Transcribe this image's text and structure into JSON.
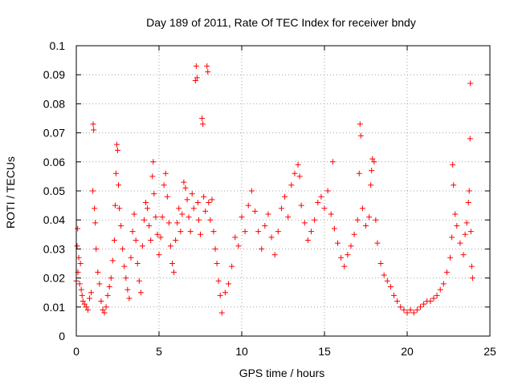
{
  "chart_data": {
    "type": "scatter",
    "title": "Day 189 of 2011, Rate Of TEC Index for receiver bndy",
    "xlabel": "GPS time / hours",
    "ylabel": "ROTI / TECUs",
    "xlim": [
      0,
      25
    ],
    "ylim": [
      0,
      0.1
    ],
    "xticks": [
      0,
      5,
      10,
      15,
      20,
      25
    ],
    "xtick_labels": [
      "0",
      "5",
      "10",
      "15",
      "20",
      "25"
    ],
    "yticks": [
      0,
      0.01,
      0.02,
      0.03,
      0.04,
      0.05,
      0.06,
      0.07,
      0.08,
      0.09,
      0.1
    ],
    "ytick_labels": [
      "0",
      "0.01",
      "0.02",
      "0.03",
      "0.04",
      "0.05",
      "0.06",
      "0.07",
      "0.08",
      "0.09",
      "0.1"
    ],
    "grid": true,
    "marker": "plus",
    "color": "#ff0000",
    "series": [
      {
        "points": [
          [
            0.0,
            0.019
          ],
          [
            0.05,
            0.031
          ],
          [
            0.08,
            0.037
          ],
          [
            0.1,
            0.022
          ],
          [
            0.15,
            0.027
          ],
          [
            0.2,
            0.018
          ],
          [
            0.25,
            0.025
          ],
          [
            0.3,
            0.016
          ],
          [
            0.35,
            0.014
          ],
          [
            0.4,
            0.012
          ],
          [
            0.5,
            0.011
          ],
          [
            0.6,
            0.01
          ],
          [
            0.7,
            0.009
          ],
          [
            0.8,
            0.013
          ],
          [
            0.9,
            0.015
          ],
          [
            1.0,
            0.05
          ],
          [
            1.02,
            0.073
          ],
          [
            1.05,
            0.071
          ],
          [
            1.1,
            0.044
          ],
          [
            1.15,
            0.039
          ],
          [
            1.2,
            0.03
          ],
          [
            1.3,
            0.022
          ],
          [
            1.4,
            0.018
          ],
          [
            1.5,
            0.012
          ],
          [
            1.6,
            0.009
          ],
          [
            1.7,
            0.008
          ],
          [
            1.8,
            0.01
          ],
          [
            1.9,
            0.014
          ],
          [
            2.0,
            0.017
          ],
          [
            2.1,
            0.02
          ],
          [
            2.2,
            0.026
          ],
          [
            2.3,
            0.033
          ],
          [
            2.35,
            0.045
          ],
          [
            2.4,
            0.056
          ],
          [
            2.45,
            0.066
          ],
          [
            2.5,
            0.064
          ],
          [
            2.55,
            0.052
          ],
          [
            2.6,
            0.044
          ],
          [
            2.7,
            0.038
          ],
          [
            2.8,
            0.03
          ],
          [
            2.9,
            0.024
          ],
          [
            3.0,
            0.02
          ],
          [
            3.1,
            0.016
          ],
          [
            3.2,
            0.013
          ],
          [
            3.3,
            0.027
          ],
          [
            3.4,
            0.036
          ],
          [
            3.5,
            0.042
          ],
          [
            3.6,
            0.033
          ],
          [
            3.7,
            0.025
          ],
          [
            3.8,
            0.019
          ],
          [
            3.9,
            0.015
          ],
          [
            4.0,
            0.031
          ],
          [
            4.1,
            0.04
          ],
          [
            4.2,
            0.046
          ],
          [
            4.3,
            0.044
          ],
          [
            4.4,
            0.038
          ],
          [
            4.5,
            0.033
          ],
          [
            4.6,
            0.055
          ],
          [
            4.65,
            0.06
          ],
          [
            4.7,
            0.049
          ],
          [
            4.8,
            0.041
          ],
          [
            4.9,
            0.035
          ],
          [
            5.0,
            0.028
          ],
          [
            5.1,
            0.034
          ],
          [
            5.2,
            0.041
          ],
          [
            5.3,
            0.052
          ],
          [
            5.4,
            0.056
          ],
          [
            5.5,
            0.048
          ],
          [
            5.6,
            0.039
          ],
          [
            5.7,
            0.031
          ],
          [
            5.8,
            0.025
          ],
          [
            5.9,
            0.022
          ],
          [
            6.0,
            0.033
          ],
          [
            6.1,
            0.039
          ],
          [
            6.2,
            0.044
          ],
          [
            6.3,
            0.036
          ],
          [
            6.4,
            0.042
          ],
          [
            6.5,
            0.053
          ],
          [
            6.6,
            0.051
          ],
          [
            6.7,
            0.047
          ],
          [
            6.8,
            0.041
          ],
          [
            6.9,
            0.036
          ],
          [
            7.0,
            0.049
          ],
          [
            7.1,
            0.044
          ],
          [
            7.2,
            0.088
          ],
          [
            7.25,
            0.093
          ],
          [
            7.3,
            0.089
          ],
          [
            7.35,
            0.046
          ],
          [
            7.4,
            0.04
          ],
          [
            7.5,
            0.035
          ],
          [
            7.6,
            0.075
          ],
          [
            7.65,
            0.073
          ],
          [
            7.7,
            0.048
          ],
          [
            7.8,
            0.043
          ],
          [
            7.9,
            0.093
          ],
          [
            7.95,
            0.091
          ],
          [
            8.0,
            0.046
          ],
          [
            8.1,
            0.04
          ],
          [
            8.2,
            0.047
          ],
          [
            8.3,
            0.036
          ],
          [
            8.4,
            0.03
          ],
          [
            8.5,
            0.025
          ],
          [
            8.6,
            0.019
          ],
          [
            8.7,
            0.014
          ],
          [
            8.8,
            0.008
          ],
          [
            9.0,
            0.015
          ],
          [
            9.2,
            0.018
          ],
          [
            9.4,
            0.024
          ],
          [
            9.6,
            0.034
          ],
          [
            9.8,
            0.031
          ],
          [
            10.0,
            0.041
          ],
          [
            10.2,
            0.036
          ],
          [
            10.4,
            0.045
          ],
          [
            10.6,
            0.05
          ],
          [
            10.8,
            0.043
          ],
          [
            11.0,
            0.036
          ],
          [
            11.2,
            0.03
          ],
          [
            11.4,
            0.038
          ],
          [
            11.6,
            0.042
          ],
          [
            11.8,
            0.034
          ],
          [
            12.0,
            0.028
          ],
          [
            12.2,
            0.036
          ],
          [
            12.4,
            0.044
          ],
          [
            12.6,
            0.048
          ],
          [
            12.8,
            0.041
          ],
          [
            13.0,
            0.052
          ],
          [
            13.2,
            0.056
          ],
          [
            13.4,
            0.059
          ],
          [
            13.5,
            0.055
          ],
          [
            13.6,
            0.045
          ],
          [
            13.8,
            0.039
          ],
          [
            14.0,
            0.033
          ],
          [
            14.2,
            0.036
          ],
          [
            14.4,
            0.04
          ],
          [
            14.6,
            0.046
          ],
          [
            14.8,
            0.048
          ],
          [
            15.0,
            0.044
          ],
          [
            15.2,
            0.05
          ],
          [
            15.4,
            0.042
          ],
          [
            15.5,
            0.06
          ],
          [
            15.6,
            0.037
          ],
          [
            15.8,
            0.032
          ],
          [
            16.0,
            0.027
          ],
          [
            16.2,
            0.024
          ],
          [
            16.4,
            0.028
          ],
          [
            16.6,
            0.031
          ],
          [
            16.8,
            0.035
          ],
          [
            17.0,
            0.04
          ],
          [
            17.1,
            0.056
          ],
          [
            17.15,
            0.073
          ],
          [
            17.2,
            0.069
          ],
          [
            17.3,
            0.044
          ],
          [
            17.5,
            0.038
          ],
          [
            17.7,
            0.041
          ],
          [
            17.8,
            0.052
          ],
          [
            17.85,
            0.057
          ],
          [
            17.9,
            0.061
          ],
          [
            18.0,
            0.06
          ],
          [
            18.1,
            0.04
          ],
          [
            18.2,
            0.032
          ],
          [
            18.4,
            0.025
          ],
          [
            18.6,
            0.021
          ],
          [
            18.8,
            0.019
          ],
          [
            19.0,
            0.017
          ],
          [
            19.2,
            0.014
          ],
          [
            19.4,
            0.012
          ],
          [
            19.6,
            0.01
          ],
          [
            19.8,
            0.009
          ],
          [
            20.0,
            0.008
          ],
          [
            20.2,
            0.009
          ],
          [
            20.4,
            0.008
          ],
          [
            20.6,
            0.009
          ],
          [
            20.8,
            0.01
          ],
          [
            21.0,
            0.011
          ],
          [
            21.2,
            0.012
          ],
          [
            21.4,
            0.012
          ],
          [
            21.6,
            0.013
          ],
          [
            21.8,
            0.014
          ],
          [
            22.0,
            0.016
          ],
          [
            22.2,
            0.018
          ],
          [
            22.4,
            0.022
          ],
          [
            22.6,
            0.027
          ],
          [
            22.7,
            0.034
          ],
          [
            22.75,
            0.059
          ],
          [
            22.8,
            0.052
          ],
          [
            22.9,
            0.042
          ],
          [
            23.0,
            0.038
          ],
          [
            23.2,
            0.032
          ],
          [
            23.4,
            0.028
          ],
          [
            23.5,
            0.035
          ],
          [
            23.6,
            0.039
          ],
          [
            23.7,
            0.046
          ],
          [
            23.75,
            0.05
          ],
          [
            23.8,
            0.068
          ],
          [
            23.82,
            0.087
          ],
          [
            23.85,
            0.036
          ],
          [
            23.9,
            0.024
          ],
          [
            23.95,
            0.02
          ]
        ]
      }
    ]
  }
}
